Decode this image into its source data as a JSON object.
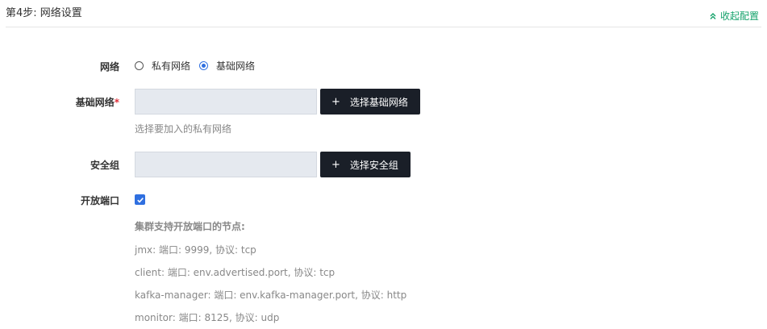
{
  "header": {
    "step_title": "第4步: 网络设置",
    "collapse_label": "收起配置"
  },
  "network": {
    "label": "网络",
    "options": [
      {
        "label": "私有网络",
        "selected": false
      },
      {
        "label": "基础网络",
        "selected": true
      }
    ]
  },
  "base_network": {
    "label": "基础网络",
    "required_mark": "*",
    "value": "",
    "button_label": "选择基础网络",
    "button_icon": "plus-icon",
    "hint": "选择要加入的私有网络"
  },
  "security_group": {
    "label": "安全组",
    "value": "",
    "button_label": "选择安全组",
    "button_icon": "plus-icon"
  },
  "open_ports": {
    "label": "开放端口",
    "checked": true,
    "nodes_title": "集群支持开放端口的节点:",
    "nodes": [
      "jmx: 端口: 9999, 协议: tcp",
      "client: 端口: env.advertised.port, 协议: tcp",
      "kafka-manager: 端口: env.kafka-manager.port, 协议: http",
      "monitor: 端口: 8125, 协议: udp"
    ]
  },
  "colors": {
    "accent_green": "#15a26b",
    "primary_blue": "#2f6fe0",
    "dark_button": "#1a1f28",
    "required_red": "#e0303a"
  }
}
